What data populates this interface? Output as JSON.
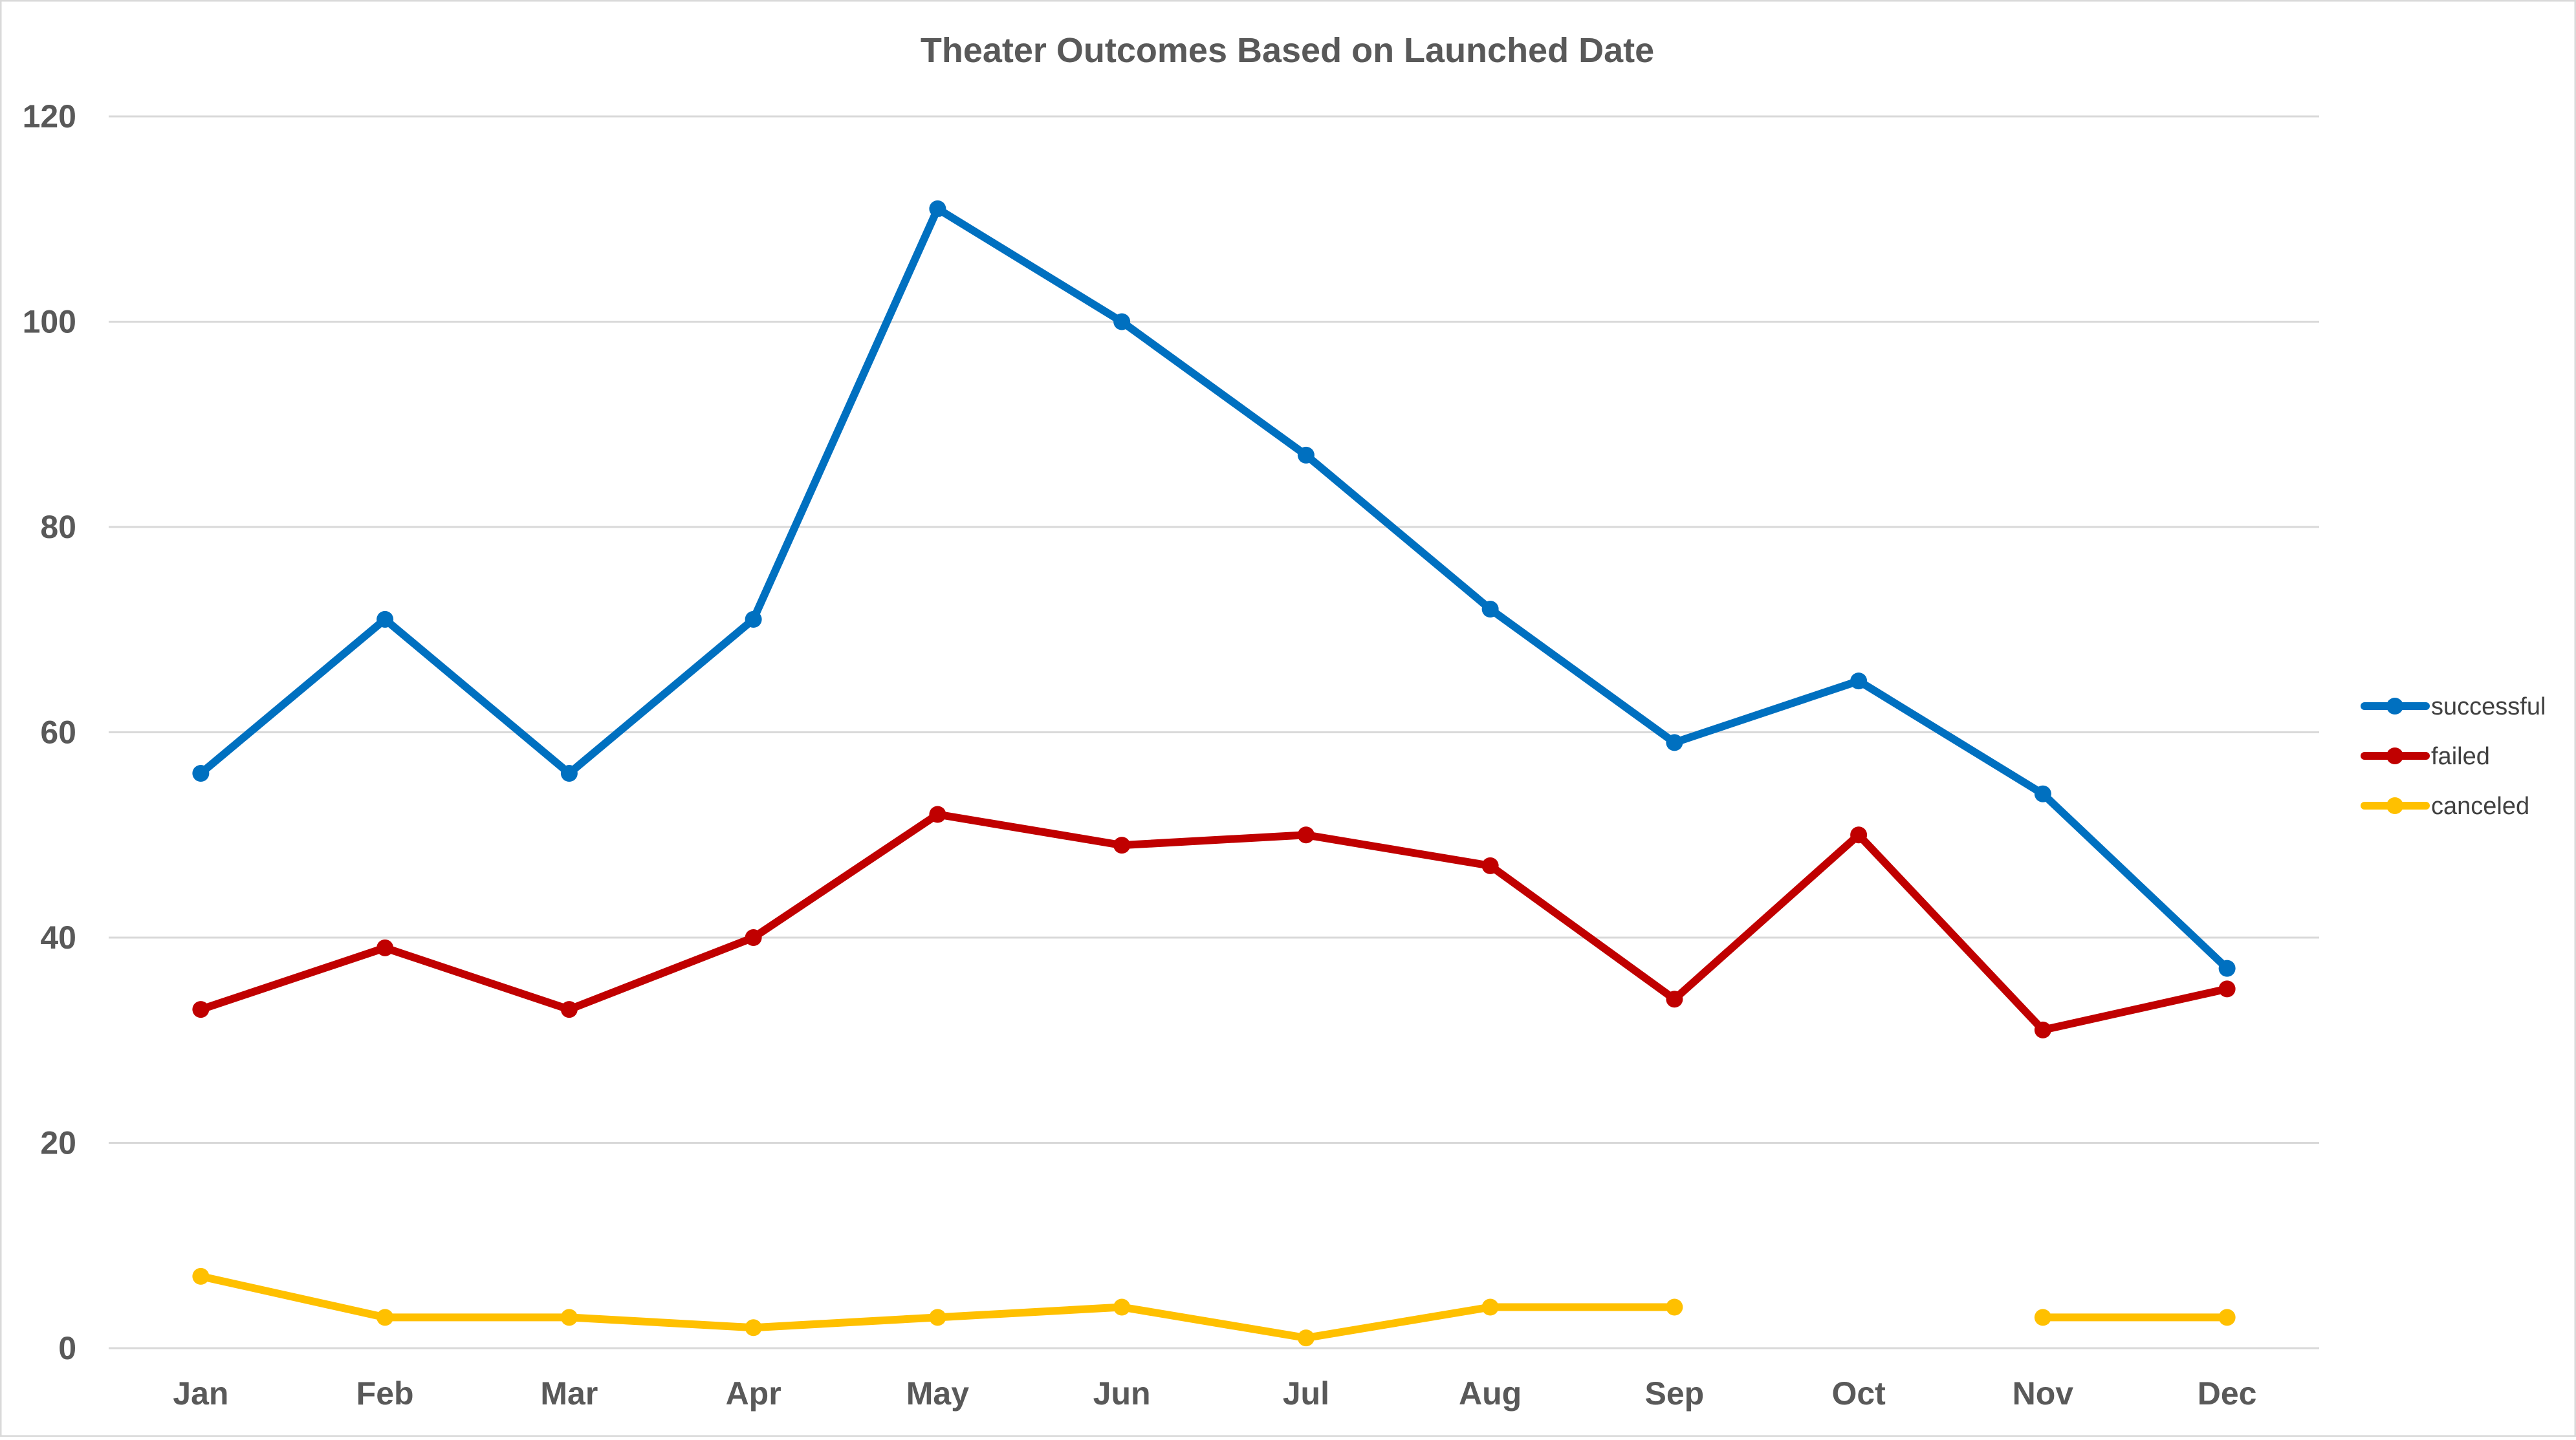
{
  "chart_data": {
    "type": "line",
    "title": "Theater Outcomes Based on Launched Date",
    "xlabel": "",
    "ylabel": "",
    "categories": [
      "Jan",
      "Feb",
      "Mar",
      "Apr",
      "May",
      "Jun",
      "Jul",
      "Aug",
      "Sep",
      "Oct",
      "Nov",
      "Dec"
    ],
    "y_ticks": [
      "0",
      "20",
      "40",
      "60",
      "80",
      "100",
      "120"
    ],
    "ylim": [
      0,
      120
    ],
    "grid": true,
    "legend_position": "right",
    "series": [
      {
        "name": "successful",
        "color": "#0070c0",
        "values": [
          56,
          71,
          56,
          71,
          111,
          100,
          87,
          72,
          59,
          65,
          54,
          37
        ]
      },
      {
        "name": "failed",
        "color": "#c00000",
        "values": [
          33,
          39,
          33,
          40,
          52,
          49,
          50,
          47,
          34,
          50,
          31,
          35
        ]
      },
      {
        "name": "canceled",
        "color": "#ffc000",
        "values": [
          7,
          3,
          3,
          2,
          3,
          4,
          1,
          4,
          4,
          null,
          3,
          3
        ]
      }
    ]
  }
}
